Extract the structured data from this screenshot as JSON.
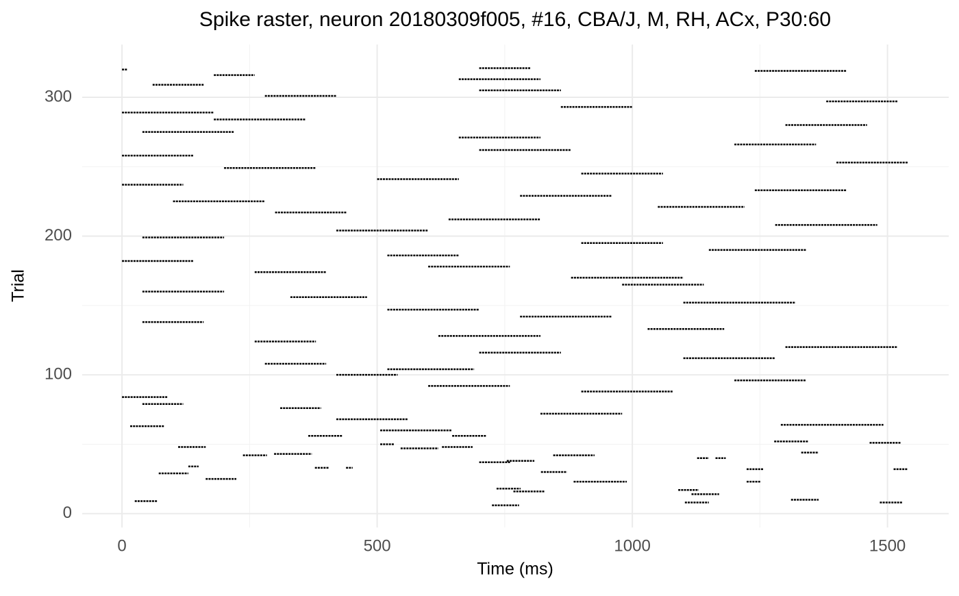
{
  "chart_data": {
    "type": "raster",
    "title": "Spike raster, neuron 20180309f005, #16, CBA/J, M, RH, ACx, P30:60",
    "xlabel": "Time (ms)",
    "ylabel": "Trial",
    "xlim": [
      -78,
      1620
    ],
    "ylim": [
      -10,
      338
    ],
    "xticks": [
      0,
      500,
      1000,
      1500
    ],
    "yticks": [
      0,
      100,
      200,
      300
    ],
    "x_minor_ticks": [
      250,
      750,
      1250
    ],
    "y_minor_ticks": [
      50,
      150,
      250
    ],
    "grid": true,
    "color": "#000000",
    "segments": [
      {
        "trial": 9,
        "start": 25,
        "end": 70
      },
      {
        "trial": 29,
        "start": 72,
        "end": 130
      },
      {
        "trial": 25,
        "start": 164,
        "end": 224
      },
      {
        "trial": 34,
        "start": 130,
        "end": 150
      },
      {
        "trial": 48,
        "start": 110,
        "end": 164
      },
      {
        "trial": 63,
        "start": 16,
        "end": 83
      },
      {
        "trial": 42,
        "start": 237,
        "end": 284
      },
      {
        "trial": 43,
        "start": 298,
        "end": 372
      },
      {
        "trial": 33,
        "start": 378,
        "end": 405
      },
      {
        "trial": 33,
        "start": 439,
        "end": 452
      },
      {
        "trial": 6,
        "start": 725,
        "end": 778
      },
      {
        "trial": 18,
        "start": 734,
        "end": 781
      },
      {
        "trial": 16,
        "start": 767,
        "end": 828
      },
      {
        "trial": 23,
        "start": 885,
        "end": 989
      },
      {
        "trial": 30,
        "start": 821,
        "end": 872
      },
      {
        "trial": 37,
        "start": 700,
        "end": 761
      },
      {
        "trial": 38,
        "start": 754,
        "end": 808
      },
      {
        "trial": 42,
        "start": 845,
        "end": 926
      },
      {
        "trial": 8,
        "start": 1103,
        "end": 1150
      },
      {
        "trial": 14,
        "start": 1116,
        "end": 1170
      },
      {
        "trial": 17,
        "start": 1090,
        "end": 1130
      },
      {
        "trial": 23,
        "start": 1224,
        "end": 1251
      },
      {
        "trial": 32,
        "start": 1224,
        "end": 1257
      },
      {
        "trial": 10,
        "start": 1311,
        "end": 1365
      },
      {
        "trial": 8,
        "start": 1485,
        "end": 1530
      },
      {
        "trial": 32,
        "start": 1512,
        "end": 1539
      },
      {
        "trial": 40,
        "start": 1127,
        "end": 1150
      },
      {
        "trial": 40,
        "start": 1163,
        "end": 1183
      },
      {
        "trial": 44,
        "start": 1331,
        "end": 1365
      },
      {
        "trial": 52,
        "start": 1278,
        "end": 1344
      },
      {
        "trial": 51,
        "start": 1465,
        "end": 1526
      },
      {
        "trial": 47,
        "start": 546,
        "end": 620
      },
      {
        "trial": 48,
        "start": 627,
        "end": 687
      },
      {
        "trial": 50,
        "start": 506,
        "end": 533
      },
      {
        "trial": 56,
        "start": 365,
        "end": 432
      },
      {
        "trial": 56,
        "start": 647,
        "end": 714
      },
      {
        "trial": 60,
        "start": 506,
        "end": 647
      },
      {
        "trial": 64,
        "start": 1291,
        "end": 1492
      },
      {
        "trial": 68,
        "start": 420,
        "end": 560
      },
      {
        "trial": 72,
        "start": 820,
        "end": 980
      },
      {
        "trial": 76,
        "start": 310,
        "end": 390
      },
      {
        "trial": 79,
        "start": 40,
        "end": 120
      },
      {
        "trial": 84,
        "start": 0,
        "end": 90
      },
      {
        "trial": 88,
        "start": 900,
        "end": 1080
      },
      {
        "trial": 92,
        "start": 600,
        "end": 760
      },
      {
        "trial": 96,
        "start": 1200,
        "end": 1340
      },
      {
        "trial": 100,
        "start": 420,
        "end": 540
      },
      {
        "trial": 104,
        "start": 520,
        "end": 690
      },
      {
        "trial": 108,
        "start": 280,
        "end": 400
      },
      {
        "trial": 112,
        "start": 1100,
        "end": 1280
      },
      {
        "trial": 116,
        "start": 700,
        "end": 860
      },
      {
        "trial": 120,
        "start": 1300,
        "end": 1520
      },
      {
        "trial": 124,
        "start": 260,
        "end": 380
      },
      {
        "trial": 128,
        "start": 620,
        "end": 820
      },
      {
        "trial": 133,
        "start": 1030,
        "end": 1180
      },
      {
        "trial": 138,
        "start": 40,
        "end": 160
      },
      {
        "trial": 142,
        "start": 780,
        "end": 960
      },
      {
        "trial": 147,
        "start": 520,
        "end": 700
      },
      {
        "trial": 152,
        "start": 1100,
        "end": 1320
      },
      {
        "trial": 156,
        "start": 330,
        "end": 480
      },
      {
        "trial": 160,
        "start": 40,
        "end": 200
      },
      {
        "trial": 165,
        "start": 980,
        "end": 1140
      },
      {
        "trial": 170,
        "start": 880,
        "end": 1100
      },
      {
        "trial": 174,
        "start": 260,
        "end": 400
      },
      {
        "trial": 178,
        "start": 600,
        "end": 760
      },
      {
        "trial": 182,
        "start": 0,
        "end": 140
      },
      {
        "trial": 186,
        "start": 520,
        "end": 660
      },
      {
        "trial": 190,
        "start": 1150,
        "end": 1340
      },
      {
        "trial": 195,
        "start": 900,
        "end": 1060
      },
      {
        "trial": 199,
        "start": 40,
        "end": 200
      },
      {
        "trial": 204,
        "start": 420,
        "end": 600
      },
      {
        "trial": 208,
        "start": 1280,
        "end": 1480
      },
      {
        "trial": 212,
        "start": 640,
        "end": 820
      },
      {
        "trial": 217,
        "start": 300,
        "end": 440
      },
      {
        "trial": 221,
        "start": 1050,
        "end": 1220
      },
      {
        "trial": 225,
        "start": 100,
        "end": 280
      },
      {
        "trial": 229,
        "start": 780,
        "end": 960
      },
      {
        "trial": 233,
        "start": 1240,
        "end": 1420
      },
      {
        "trial": 237,
        "start": 0,
        "end": 120
      },
      {
        "trial": 241,
        "start": 500,
        "end": 660
      },
      {
        "trial": 245,
        "start": 900,
        "end": 1060
      },
      {
        "trial": 249,
        "start": 200,
        "end": 380
      },
      {
        "trial": 253,
        "start": 1400,
        "end": 1540
      },
      {
        "trial": 258,
        "start": 0,
        "end": 140
      },
      {
        "trial": 262,
        "start": 700,
        "end": 880
      },
      {
        "trial": 266,
        "start": 1200,
        "end": 1360
      },
      {
        "trial": 271,
        "start": 660,
        "end": 820
      },
      {
        "trial": 275,
        "start": 40,
        "end": 220
      },
      {
        "trial": 280,
        "start": 1300,
        "end": 1460
      },
      {
        "trial": 284,
        "start": 180,
        "end": 360
      },
      {
        "trial": 289,
        "start": 0,
        "end": 180
      },
      {
        "trial": 293,
        "start": 860,
        "end": 1000
      },
      {
        "trial": 297,
        "start": 1380,
        "end": 1520
      },
      {
        "trial": 301,
        "start": 280,
        "end": 420
      },
      {
        "trial": 305,
        "start": 700,
        "end": 860
      },
      {
        "trial": 309,
        "start": 60,
        "end": 160
      },
      {
        "trial": 313,
        "start": 660,
        "end": 820
      },
      {
        "trial": 316,
        "start": 180,
        "end": 260
      },
      {
        "trial": 319,
        "start": 1240,
        "end": 1420
      },
      {
        "trial": 321,
        "start": 700,
        "end": 800
      },
      {
        "trial": 320,
        "start": 0,
        "end": 10
      }
    ]
  }
}
